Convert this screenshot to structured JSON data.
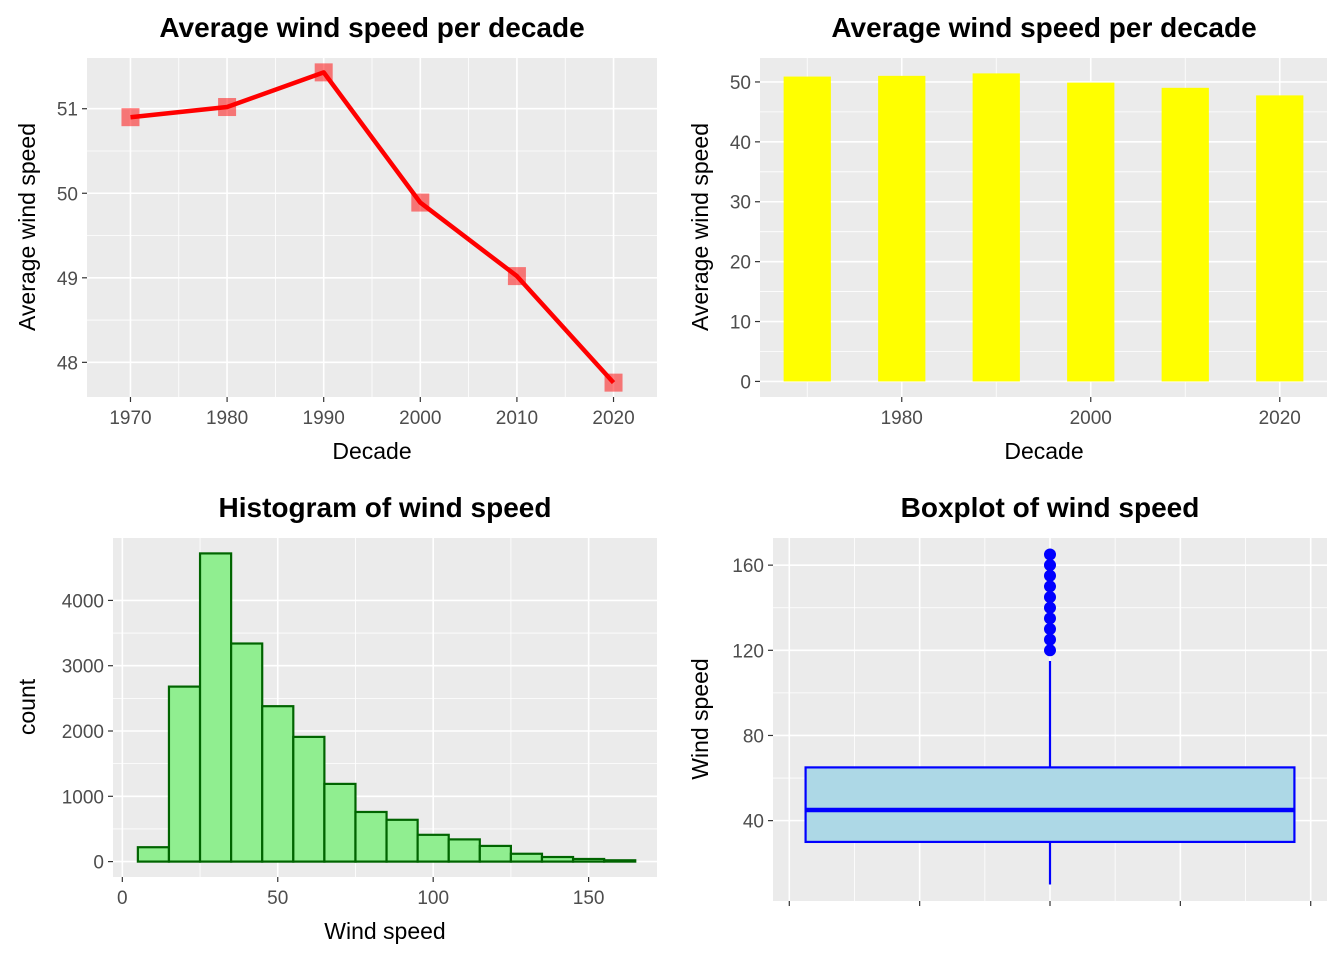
{
  "chart_data": [
    {
      "type": "line",
      "title": "Average wind speed per decade",
      "xlabel": "Decade",
      "ylabel": "Average wind speed",
      "x": [
        1970,
        1980,
        1990,
        2000,
        2010,
        2020
      ],
      "values": [
        50.9,
        51.02,
        51.43,
        49.89,
        49.02,
        47.76
      ],
      "xlim": [
        1965.5,
        2024.5
      ],
      "ylim": [
        47.59,
        51.6
      ],
      "xticks": [
        1970,
        1980,
        1990,
        2000,
        2010,
        2020
      ],
      "yticks": [
        48,
        49,
        50,
        51
      ],
      "line_color": "#ff0000",
      "marker": "square",
      "grid": true
    },
    {
      "type": "bar",
      "title": "Average wind speed per decade",
      "xlabel": "Decade",
      "ylabel": "Average wind speed",
      "x": [
        1970,
        1980,
        1990,
        2000,
        2010,
        2020
      ],
      "values": [
        50.9,
        51.02,
        51.43,
        49.89,
        49.02,
        47.76
      ],
      "xlim": [
        1965,
        2025
      ],
      "ylim": [
        -2.6,
        54
      ],
      "xticks": [
        1980,
        2000,
        2020
      ],
      "yticks": [
        0,
        10,
        20,
        30,
        40,
        50
      ],
      "fill_color": "#ffff00",
      "grid": true
    },
    {
      "type": "bar",
      "title": "Histogram of wind speed",
      "xlabel": "Wind speed",
      "ylabel": "count",
      "bin_width": 10,
      "bin_centers": [
        10,
        20,
        30,
        40,
        50,
        60,
        70,
        80,
        90,
        100,
        110,
        120,
        130,
        140,
        150,
        160
      ],
      "values": [
        220,
        2680,
        4720,
        3340,
        2380,
        1910,
        1190,
        760,
        640,
        410,
        340,
        240,
        120,
        70,
        40,
        20
      ],
      "xlim": [
        -3,
        172
      ],
      "ylim": [
        -236,
        4956
      ],
      "xticks": [
        0,
        50,
        100,
        150
      ],
      "yticks": [
        0,
        1000,
        2000,
        3000,
        4000
      ],
      "fill_color": "#90ee90",
      "edge_color": "#006400",
      "grid": true
    },
    {
      "type": "boxplot",
      "title": "Boxplot of wind speed",
      "xlabel": "",
      "ylabel": "Wind speed",
      "box": {
        "min": 10,
        "q1": 30,
        "median": 45,
        "q3": 65,
        "max": 115
      },
      "outliers": [
        120,
        125,
        130,
        135,
        140,
        145,
        150,
        155,
        160,
        165
      ],
      "ylim": [
        2.25,
        172.75
      ],
      "yticks": [
        40,
        80,
        120,
        160
      ],
      "fill_color": "#add8e6",
      "edge_color": "#0000ff",
      "grid": true
    }
  ]
}
